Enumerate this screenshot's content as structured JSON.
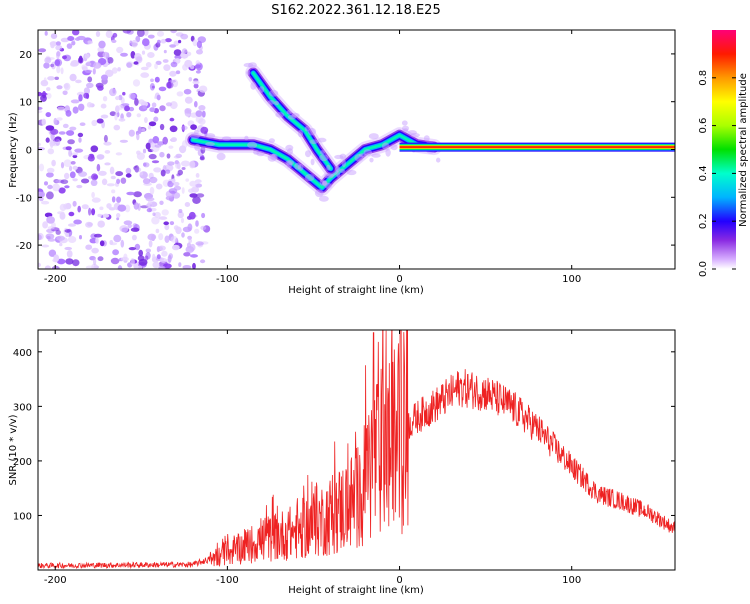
{
  "figure": {
    "title": "S162.2022.361.12.18.E25"
  },
  "chart_data": [
    {
      "type": "heatmap",
      "name": "spectrogram",
      "xlabel": "Height of straight line (km)",
      "ylabel": "Frequency (Hz)",
      "xlim": [
        -210,
        160
      ],
      "ylim": [
        -25,
        25
      ],
      "x_ticks": [
        -200,
        -100,
        0,
        100
      ],
      "y_ticks": [
        -20,
        -10,
        0,
        10,
        20
      ],
      "colorbar": {
        "label": "Normalized spectral amplitude",
        "range": [
          0,
          1
        ],
        "ticks": [
          "0.0",
          "0.2",
          "0.4",
          "0.6",
          "0.8"
        ],
        "tick_values": [
          0,
          0.2,
          0.4,
          0.6,
          0.8
        ]
      },
      "features": {
        "noise_region_x": [
          -210,
          -120
        ],
        "carrier_line": {
          "x": [
            0,
            160
          ],
          "freq_hz": 0.5,
          "amplitude": 1.0
        },
        "primary_track": [
          {
            "x": -120,
            "freq_hz": 2
          },
          {
            "x": -105,
            "freq_hz": 1
          },
          {
            "x": -85,
            "freq_hz": 1
          },
          {
            "x": -75,
            "freq_hz": 0
          },
          {
            "x": -65,
            "freq_hz": -2
          },
          {
            "x": -55,
            "freq_hz": -5
          },
          {
            "x": -45,
            "freq_hz": -8
          },
          {
            "x": -40,
            "freq_hz": -6
          },
          {
            "x": -30,
            "freq_hz": -3
          },
          {
            "x": -20,
            "freq_hz": 0
          },
          {
            "x": -10,
            "freq_hz": 1
          },
          {
            "x": 0,
            "freq_hz": 3
          },
          {
            "x": 10,
            "freq_hz": 1
          },
          {
            "x": 20,
            "freq_hz": 0.5
          }
        ],
        "secondary_track": [
          {
            "x": -85,
            "freq_hz": 16
          },
          {
            "x": -75,
            "freq_hz": 11
          },
          {
            "x": -65,
            "freq_hz": 7
          },
          {
            "x": -55,
            "freq_hz": 4
          },
          {
            "x": -48,
            "freq_hz": 0
          },
          {
            "x": -40,
            "freq_hz": -4
          }
        ]
      }
    },
    {
      "type": "line",
      "name": "snr",
      "xlabel": "Height of straight line (km)",
      "ylabel": "SNR (10 * v/v)",
      "xlim": [
        -210,
        160
      ],
      "ylim": [
        0,
        440
      ],
      "x_ticks": [
        -200,
        -100,
        0,
        100
      ],
      "y_ticks": [
        100,
        200,
        300,
        400
      ],
      "series": [
        {
          "color": "#ee2222",
          "envelope": [
            {
              "x": -210,
              "y": 8
            },
            {
              "x": -120,
              "y": 10
            },
            {
              "x": -100,
              "y": 30
            },
            {
              "x": -80,
              "y": 55
            },
            {
              "x": -60,
              "y": 70
            },
            {
              "x": -40,
              "y": 100
            },
            {
              "x": -25,
              "y": 130
            },
            {
              "x": -15,
              "y": 200
            },
            {
              "x": 0,
              "y": 250
            },
            {
              "x": 10,
              "y": 280
            },
            {
              "x": 20,
              "y": 300
            },
            {
              "x": 35,
              "y": 335
            },
            {
              "x": 50,
              "y": 325
            },
            {
              "x": 65,
              "y": 300
            },
            {
              "x": 80,
              "y": 260
            },
            {
              "x": 100,
              "y": 190
            },
            {
              "x": 115,
              "y": 140
            },
            {
              "x": 130,
              "y": 125
            },
            {
              "x": 145,
              "y": 105
            },
            {
              "x": 160,
              "y": 75
            }
          ],
          "peak": {
            "x": -15,
            "y": 435
          }
        }
      ]
    }
  ]
}
